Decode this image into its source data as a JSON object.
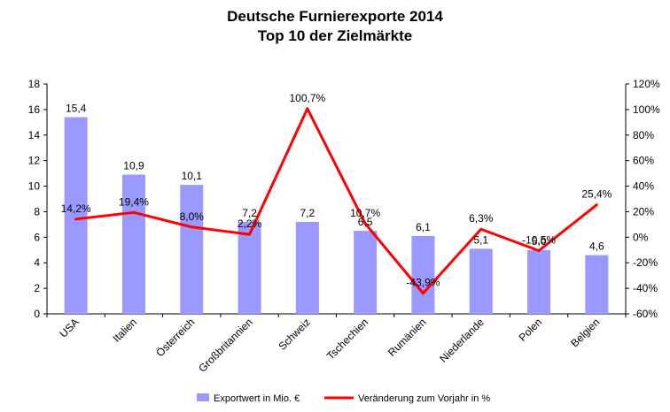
{
  "chart_data": {
    "type": "bar",
    "title": "Deutsche Furnierexporte 2014",
    "subtitle": "Top 10 der Zielmärkte",
    "categories": [
      "USA",
      "Italien",
      "Österreich",
      "Großbritannien",
      "Schweiz",
      "Tschechien",
      "Rumänien",
      "Niederlande",
      "Polen",
      "Belgien"
    ],
    "series": [
      {
        "name": "Exportwert in Mio. €",
        "type": "bar",
        "axis": "left",
        "color": "#9999ff",
        "values": [
          15.4,
          10.9,
          10.1,
          7.2,
          7.2,
          6.5,
          6.1,
          5.1,
          5.0,
          4.6
        ],
        "labels": [
          "15,4",
          "10,9",
          "10,1",
          "7,2",
          "7,2",
          "6,5",
          "6,1",
          "5,1",
          "5,0",
          "4,6"
        ]
      },
      {
        "name": "Veränderung zum Vorjahr in %",
        "type": "line",
        "axis": "right",
        "color": "#ff0000",
        "values": [
          14.2,
          19.4,
          8.0,
          2.2,
          100.7,
          10.7,
          -43.9,
          6.3,
          -10.5,
          25.4
        ],
        "labels": [
          "14,2%",
          "19,4%",
          "8,0%",
          "2,2%",
          "100,7%",
          "10,7%",
          "-43,9%",
          "6,3%",
          "-10,5%",
          "25,4%"
        ]
      }
    ],
    "y_left": {
      "min": 0,
      "max": 18,
      "step": 2,
      "ticks": [
        "0",
        "2",
        "4",
        "6",
        "8",
        "10",
        "12",
        "14",
        "16",
        "18"
      ]
    },
    "y_right": {
      "min": -60,
      "max": 120,
      "step": 20,
      "ticks": [
        "-60%",
        "-40%",
        "-20%",
        "0%",
        "20%",
        "40%",
        "60%",
        "80%",
        "100%",
        "120%"
      ]
    },
    "grid": false,
    "legend": "bottom"
  }
}
